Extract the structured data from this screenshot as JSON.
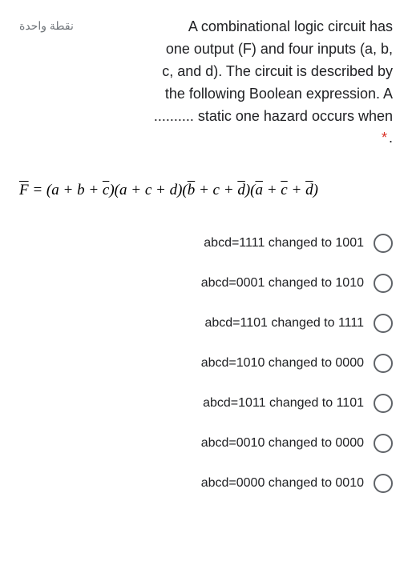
{
  "points_label": "نقطة واحدة",
  "question": {
    "line1": "A combinational logic circuit has",
    "line2": "one output (F) and four inputs (a, b,",
    "line3": "c, and d). The circuit is described by",
    "line4": "the following Boolean expression. A",
    "line5": ".......... static one hazard occurs when",
    "suffix": "."
  },
  "equation": {
    "F": "F",
    "eq": " = (a + b + ",
    "c_bar": "c",
    "part2": ")(a + c + d)(",
    "b_bar": "b",
    "part3": " + c + ",
    "d_bar": "d",
    "part4": ")(",
    "a_bar": "a",
    "part5": " + ",
    "c_bar2": "c",
    "part6": " + ",
    "d_bar2": "d",
    "part7": ")"
  },
  "options": [
    "abcd=1111 changed to 1001",
    "abcd=0001 changed to 1010",
    "abcd=1101 changed to 1111",
    "abcd=1010 changed to 0000",
    "abcd=1011 changed to 1101",
    "abcd=0010 changed to 0000",
    "abcd=0000 changed to 0010"
  ],
  "colors": {
    "text": "#202124",
    "muted": "#70757a",
    "required": "#d93025",
    "radio_border": "#5f6368",
    "background": "#ffffff"
  }
}
